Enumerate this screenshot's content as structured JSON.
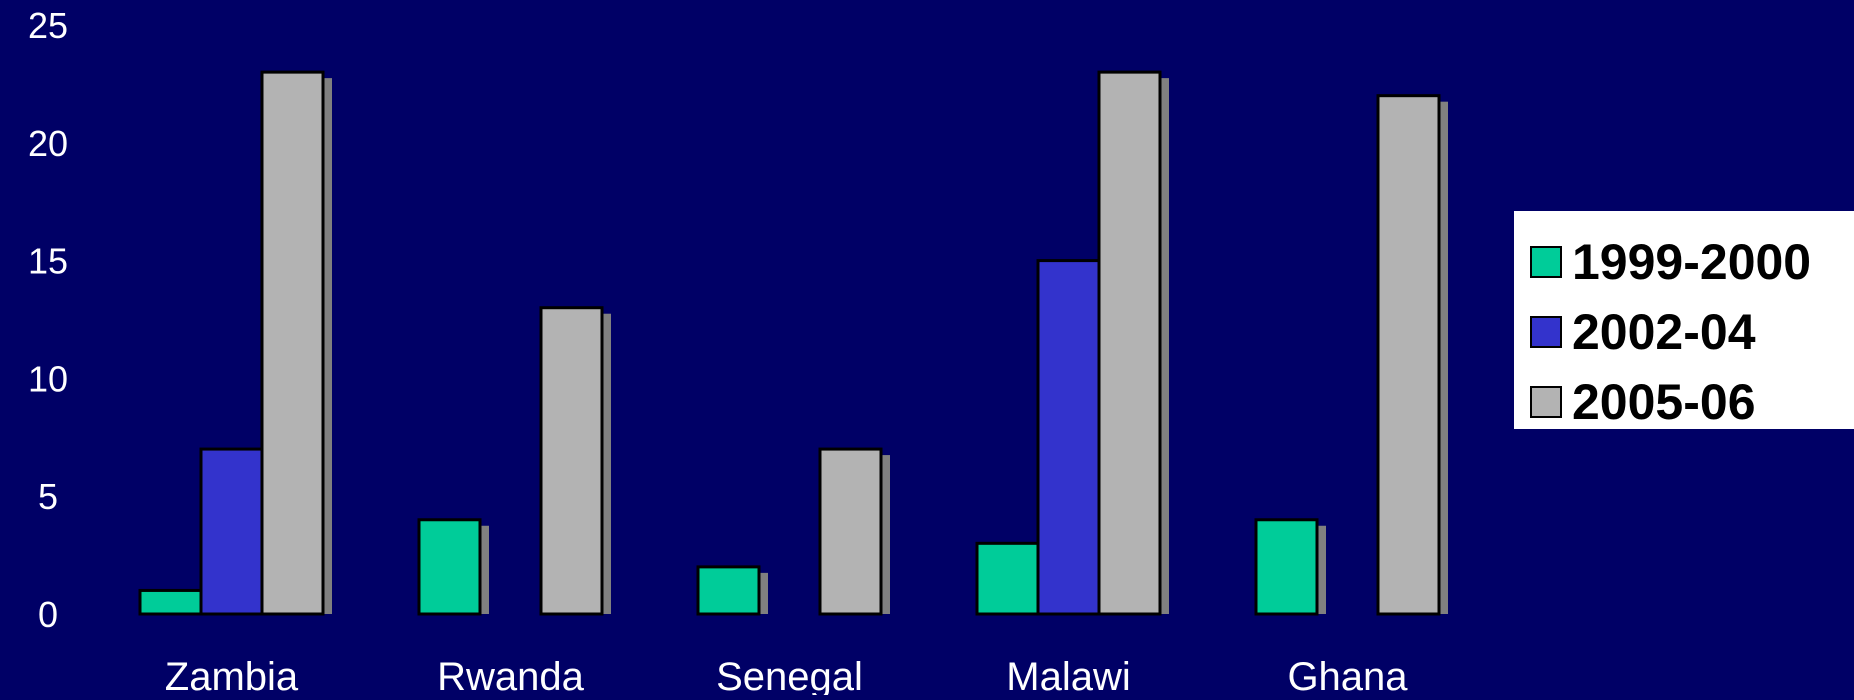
{
  "chart_data": {
    "type": "bar",
    "categories": [
      "Zambia",
      "Rwanda",
      "Senegal",
      "Malawi",
      "Ghana"
    ],
    "series": [
      {
        "name": "1999-2000",
        "values": [
          1,
          4,
          2,
          3,
          4
        ],
        "color": "#00cc99"
      },
      {
        "name": "2002-04",
        "values": [
          7,
          null,
          null,
          15,
          null
        ],
        "color": "#3333cc"
      },
      {
        "name": "2005-06",
        "values": [
          23,
          13,
          7,
          23,
          22
        ],
        "color": "#b3b3b3"
      }
    ],
    "ylim": [
      0,
      25
    ],
    "yticks": [
      0,
      5,
      10,
      15,
      20,
      25
    ],
    "ytick_labels": [
      "0",
      "5",
      "10",
      "15",
      "20",
      "25"
    ],
    "grid": false,
    "legend_position": "right",
    "colors": {
      "background": "#000066",
      "text": "#ffffff",
      "shadow": "#808080",
      "legend_bg": "#ffffff"
    }
  }
}
